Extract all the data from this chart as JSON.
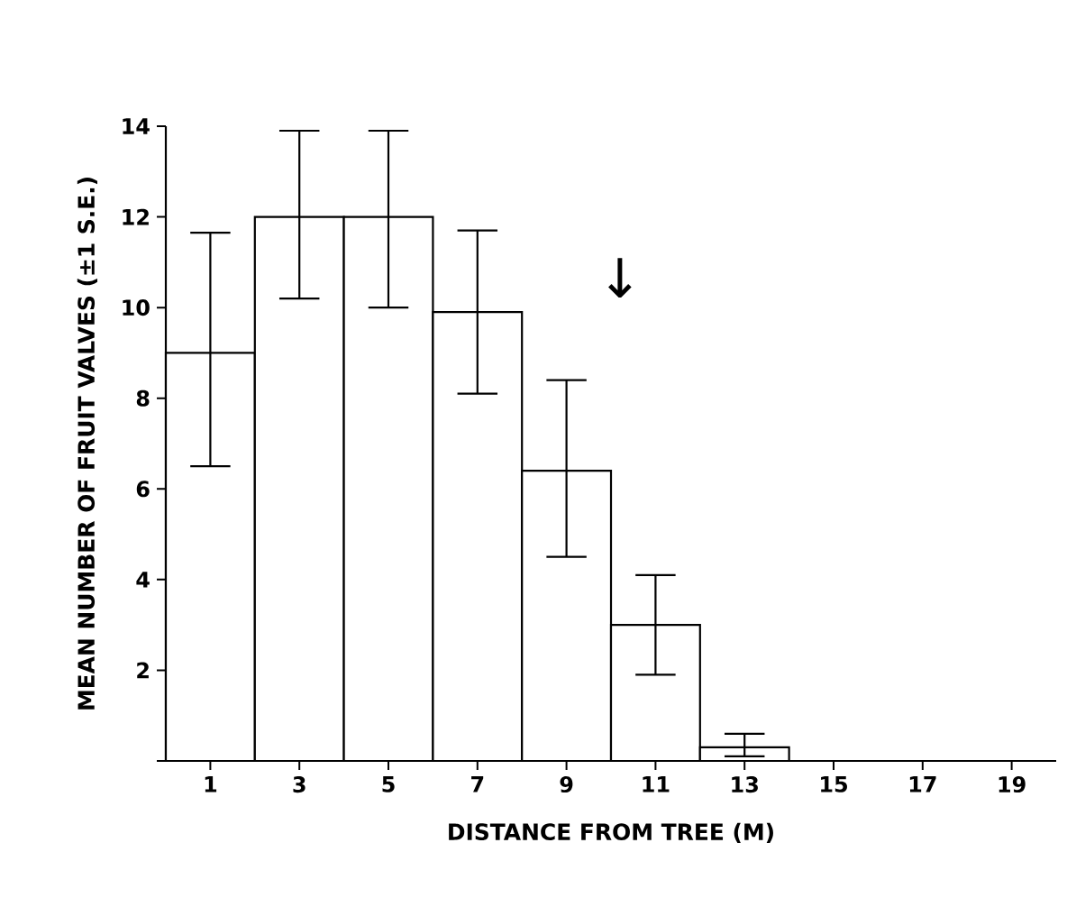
{
  "chart_data": {
    "type": "histogram",
    "xlabel": "DISTANCE FROM TREE (M)",
    "ylabel": "MEAN NUMBER OF FRUIT VALVES (±1 S.E.)",
    "bins": [
      0,
      2,
      4,
      6,
      8,
      10,
      12,
      14,
      16,
      18,
      20
    ],
    "values": [
      9.0,
      12.0,
      12.0,
      9.9,
      6.4,
      3.0,
      0.3,
      0,
      0,
      0
    ],
    "errors": [
      [
        6.5,
        11.65
      ],
      [
        10.2,
        13.9
      ],
      [
        10.0,
        13.9
      ],
      [
        8.1,
        11.7
      ],
      [
        4.5,
        8.4
      ],
      [
        1.9,
        4.1
      ],
      [
        0.1,
        0.6
      ],
      null,
      null,
      null
    ],
    "color": "#ffffff",
    "xlim": [
      0,
      20
    ],
    "ylim": [
      0,
      14
    ],
    "xticks": [
      1,
      3,
      5,
      7,
      9,
      11,
      13,
      15,
      17,
      19
    ],
    "yticks": [
      {
        "value": 0,
        "label": null
      },
      2,
      4,
      6,
      8,
      10,
      12,
      14
    ],
    "annotations": [
      "↓"
    ]
  }
}
